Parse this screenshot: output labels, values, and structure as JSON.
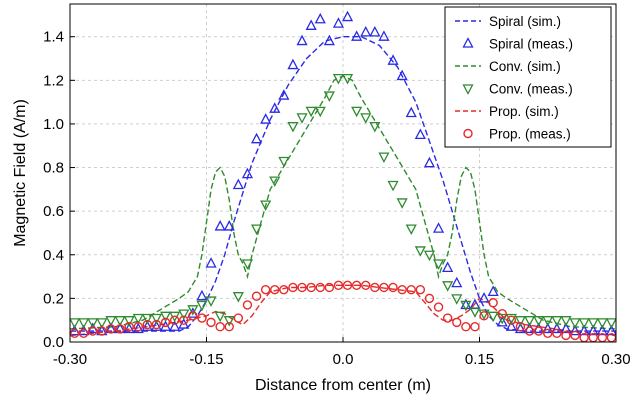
{
  "chart_data": {
    "type": "line",
    "title": "",
    "xlabel": "Distance from center (m)",
    "ylabel": "Magnetic Field (A/m)",
    "xlim": [
      -0.3,
      0.3
    ],
    "ylim": [
      0.0,
      1.55
    ],
    "xticks": [
      "-0.30",
      "-0.15",
      "0.0",
      "0.15",
      "0.30"
    ],
    "xtick_values": [
      -0.3,
      -0.15,
      0.0,
      0.15,
      0.3
    ],
    "yticks": [
      "0.0",
      "0.2",
      "0.4",
      "0.6",
      "0.8",
      "1.0",
      "1.2",
      "1.4"
    ],
    "ytick_values": [
      0.0,
      0.2,
      0.4,
      0.6,
      0.8,
      1.0,
      1.2,
      1.4
    ],
    "grid": true,
    "legend_position": "top-right",
    "series": [
      {
        "name": "Spiral (sim.)",
        "kind": "dashed-line",
        "color": "#2a2ae6",
        "x": [
          -0.3,
          -0.25,
          -0.2,
          -0.18,
          -0.17,
          -0.16,
          -0.15,
          -0.14,
          -0.13,
          -0.12,
          -0.1,
          -0.08,
          -0.06,
          -0.04,
          -0.02,
          0.0,
          0.02,
          0.04,
          0.06,
          0.08,
          0.1,
          0.11,
          0.12,
          0.13,
          0.14,
          0.15,
          0.16,
          0.17,
          0.18,
          0.2,
          0.25,
          0.3
        ],
        "y": [
          0.05,
          0.05,
          0.05,
          0.05,
          0.07,
          0.12,
          0.19,
          0.28,
          0.4,
          0.55,
          0.82,
          1.02,
          1.18,
          1.3,
          1.38,
          1.4,
          1.4,
          1.36,
          1.26,
          1.1,
          0.86,
          0.74,
          0.6,
          0.46,
          0.32,
          0.2,
          0.12,
          0.08,
          0.06,
          0.05,
          0.05,
          0.05
        ]
      },
      {
        "name": "Spiral (meas.)",
        "kind": "triangle-up",
        "color": "#2a2ae6",
        "x": [
          -0.295,
          -0.285,
          -0.275,
          -0.265,
          -0.255,
          -0.245,
          -0.235,
          -0.225,
          -0.215,
          -0.205,
          -0.195,
          -0.185,
          -0.175,
          -0.165,
          -0.155,
          -0.145,
          -0.135,
          -0.125,
          -0.115,
          -0.105,
          -0.095,
          -0.085,
          -0.075,
          -0.065,
          -0.055,
          -0.045,
          -0.035,
          -0.025,
          -0.015,
          -0.005,
          0.005,
          0.015,
          0.025,
          0.035,
          0.045,
          0.055,
          0.065,
          0.075,
          0.085,
          0.095,
          0.105,
          0.115,
          0.125,
          0.135,
          0.145,
          0.155,
          0.165,
          0.175,
          0.185,
          0.195,
          0.205,
          0.215,
          0.225,
          0.235,
          0.245,
          0.255,
          0.265,
          0.275,
          0.285,
          0.295
        ],
        "y": [
          0.05,
          0.05,
          0.06,
          0.05,
          0.06,
          0.06,
          0.06,
          0.06,
          0.07,
          0.07,
          0.07,
          0.07,
          0.08,
          0.13,
          0.21,
          0.36,
          0.53,
          0.53,
          0.72,
          0.77,
          0.93,
          1.02,
          1.07,
          1.13,
          1.27,
          1.38,
          1.45,
          1.48,
          1.38,
          1.46,
          1.49,
          1.4,
          1.42,
          1.42,
          1.4,
          1.29,
          1.22,
          1.05,
          0.95,
          0.82,
          0.52,
          0.34,
          0.27,
          0.17,
          0.17,
          0.2,
          0.23,
          0.09,
          0.07,
          0.06,
          0.06,
          0.06,
          0.06,
          0.06,
          0.06,
          0.05,
          0.05,
          0.05,
          0.05,
          0.05
        ]
      },
      {
        "name": "Conv. (sim.)",
        "kind": "dashed-line",
        "color": "#2e8b2e",
        "x": [
          -0.3,
          -0.25,
          -0.22,
          -0.2,
          -0.18,
          -0.17,
          -0.16,
          -0.155,
          -0.15,
          -0.145,
          -0.14,
          -0.135,
          -0.13,
          -0.125,
          -0.12,
          -0.115,
          -0.11,
          -0.105,
          -0.1,
          -0.09,
          -0.08,
          -0.06,
          -0.04,
          -0.02,
          -0.01,
          0.0,
          0.01,
          0.02,
          0.04,
          0.06,
          0.08,
          0.09,
          0.1,
          0.105,
          0.11,
          0.115,
          0.12,
          0.125,
          0.13,
          0.135,
          0.14,
          0.145,
          0.15,
          0.155,
          0.16,
          0.17,
          0.18,
          0.2,
          0.22,
          0.25,
          0.3
        ],
        "y": [
          0.06,
          0.07,
          0.1,
          0.15,
          0.2,
          0.23,
          0.3,
          0.4,
          0.55,
          0.7,
          0.78,
          0.8,
          0.76,
          0.65,
          0.5,
          0.4,
          0.36,
          0.3,
          0.4,
          0.55,
          0.7,
          0.84,
          0.98,
          1.12,
          1.2,
          1.22,
          1.2,
          1.12,
          0.98,
          0.84,
          0.7,
          0.55,
          0.4,
          0.3,
          0.36,
          0.4,
          0.5,
          0.65,
          0.76,
          0.8,
          0.78,
          0.7,
          0.55,
          0.4,
          0.3,
          0.23,
          0.2,
          0.15,
          0.1,
          0.07,
          0.06
        ]
      },
      {
        "name": "Conv. (meas.)",
        "kind": "triangle-down",
        "color": "#2e8b2e",
        "x": [
          -0.295,
          -0.285,
          -0.275,
          -0.265,
          -0.255,
          -0.245,
          -0.235,
          -0.225,
          -0.215,
          -0.205,
          -0.195,
          -0.185,
          -0.175,
          -0.165,
          -0.155,
          -0.145,
          -0.135,
          -0.125,
          -0.115,
          -0.105,
          -0.095,
          -0.085,
          -0.075,
          -0.065,
          -0.055,
          -0.045,
          -0.035,
          -0.025,
          -0.015,
          -0.005,
          0.005,
          0.015,
          0.025,
          0.035,
          0.045,
          0.055,
          0.065,
          0.075,
          0.085,
          0.095,
          0.105,
          0.115,
          0.125,
          0.135,
          0.145,
          0.155,
          0.165,
          0.175,
          0.185,
          0.195,
          0.205,
          0.215,
          0.225,
          0.235,
          0.245,
          0.255,
          0.265,
          0.275,
          0.285,
          0.295
        ],
        "y": [
          0.09,
          0.09,
          0.09,
          0.09,
          0.1,
          0.1,
          0.1,
          0.11,
          0.11,
          0.11,
          0.12,
          0.12,
          0.13,
          0.15,
          0.17,
          0.19,
          0.12,
          0.1,
          0.21,
          0.36,
          0.52,
          0.63,
          0.74,
          0.83,
          0.99,
          1.03,
          1.06,
          1.06,
          1.13,
          1.21,
          1.21,
          1.06,
          1.03,
          0.99,
          0.85,
          0.72,
          0.64,
          0.52,
          0.42,
          0.4,
          0.36,
          0.26,
          0.2,
          0.17,
          0.14,
          0.13,
          0.12,
          0.11,
          0.11,
          0.1,
          0.1,
          0.1,
          0.1,
          0.1,
          0.1,
          0.09,
          0.09,
          0.09,
          0.09,
          0.09
        ]
      },
      {
        "name": "Prop. (sim.)",
        "kind": "dashed-line",
        "color": "#e62a2a",
        "x": [
          -0.3,
          -0.25,
          -0.2,
          -0.17,
          -0.15,
          -0.14,
          -0.13,
          -0.12,
          -0.11,
          -0.1,
          -0.09,
          -0.08,
          -0.06,
          -0.04,
          -0.02,
          0.0,
          0.02,
          0.04,
          0.06,
          0.08,
          0.09,
          0.1,
          0.11,
          0.12,
          0.13,
          0.14,
          0.15,
          0.16,
          0.17,
          0.18,
          0.2,
          0.25,
          0.3
        ],
        "y": [
          0.03,
          0.05,
          0.08,
          0.1,
          0.12,
          0.14,
          0.13,
          0.1,
          0.08,
          0.12,
          0.18,
          0.23,
          0.25,
          0.25,
          0.26,
          0.26,
          0.26,
          0.25,
          0.24,
          0.23,
          0.18,
          0.13,
          0.1,
          0.1,
          0.12,
          0.15,
          0.2,
          0.18,
          0.14,
          0.1,
          0.08,
          0.05,
          0.03
        ]
      },
      {
        "name": "Prop. (meas.)",
        "kind": "circle",
        "color": "#e62a2a",
        "x": [
          -0.295,
          -0.285,
          -0.275,
          -0.265,
          -0.255,
          -0.245,
          -0.235,
          -0.225,
          -0.215,
          -0.205,
          -0.195,
          -0.185,
          -0.175,
          -0.165,
          -0.155,
          -0.145,
          -0.135,
          -0.125,
          -0.115,
          -0.105,
          -0.095,
          -0.085,
          -0.075,
          -0.065,
          -0.055,
          -0.045,
          -0.035,
          -0.025,
          -0.015,
          -0.005,
          0.005,
          0.015,
          0.025,
          0.035,
          0.045,
          0.055,
          0.065,
          0.075,
          0.085,
          0.095,
          0.105,
          0.115,
          0.125,
          0.135,
          0.145,
          0.155,
          0.165,
          0.175,
          0.185,
          0.195,
          0.205,
          0.215,
          0.225,
          0.235,
          0.245,
          0.255,
          0.265,
          0.275,
          0.285,
          0.295
        ],
        "y": [
          0.04,
          0.04,
          0.05,
          0.05,
          0.06,
          0.06,
          0.07,
          0.07,
          0.08,
          0.08,
          0.09,
          0.1,
          0.1,
          0.12,
          0.11,
          0.09,
          0.07,
          0.07,
          0.11,
          0.17,
          0.21,
          0.24,
          0.24,
          0.24,
          0.25,
          0.25,
          0.25,
          0.25,
          0.25,
          0.26,
          0.26,
          0.26,
          0.26,
          0.25,
          0.25,
          0.25,
          0.24,
          0.24,
          0.24,
          0.2,
          0.16,
          0.11,
          0.09,
          0.07,
          0.07,
          0.12,
          0.18,
          0.13,
          0.1,
          0.07,
          0.05,
          0.05,
          0.04,
          0.04,
          0.03,
          0.03,
          0.02,
          0.02,
          0.02,
          0.02
        ]
      }
    ]
  }
}
